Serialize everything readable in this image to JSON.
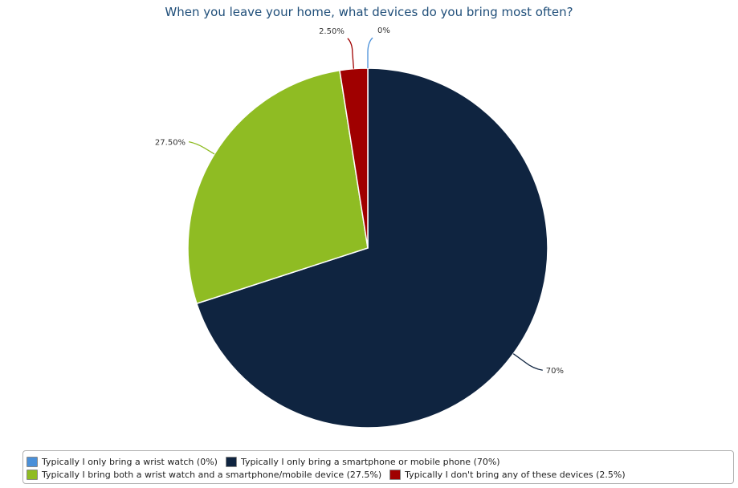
{
  "chart_data": {
    "type": "pie",
    "title": "When you leave your home, what devices do you bring most often?",
    "slices": [
      {
        "name": "Typically I only bring a wrist watch",
        "value": 0,
        "data_label": "0%",
        "legend_label": "Typically I only bring a wrist watch (0%)",
        "color": "#4a90d9"
      },
      {
        "name": "Typically I only bring a smartphone or mobile phone",
        "value": 70,
        "data_label": "70%",
        "legend_label": "Typically I only bring a smartphone or mobile phone (70%)",
        "color": "#0f2440"
      },
      {
        "name": "Typically I bring both a wrist watch and a smartphone/mobile device",
        "value": 27.5,
        "data_label": "27.50%",
        "legend_label": "Typically I bring both a wrist watch and a smartphone/mobile device (27.5%)",
        "color": "#8fbc23"
      },
      {
        "name": "Typically I don't bring any of these devices",
        "value": 2.5,
        "data_label": "2.50%",
        "legend_label": "Typically I don't bring any of these devices (2.5%)",
        "color": "#a00000"
      }
    ],
    "legend_placement": "bottom",
    "legend_rows": [
      [
        0,
        1
      ],
      [
        2,
        3
      ]
    ]
  }
}
